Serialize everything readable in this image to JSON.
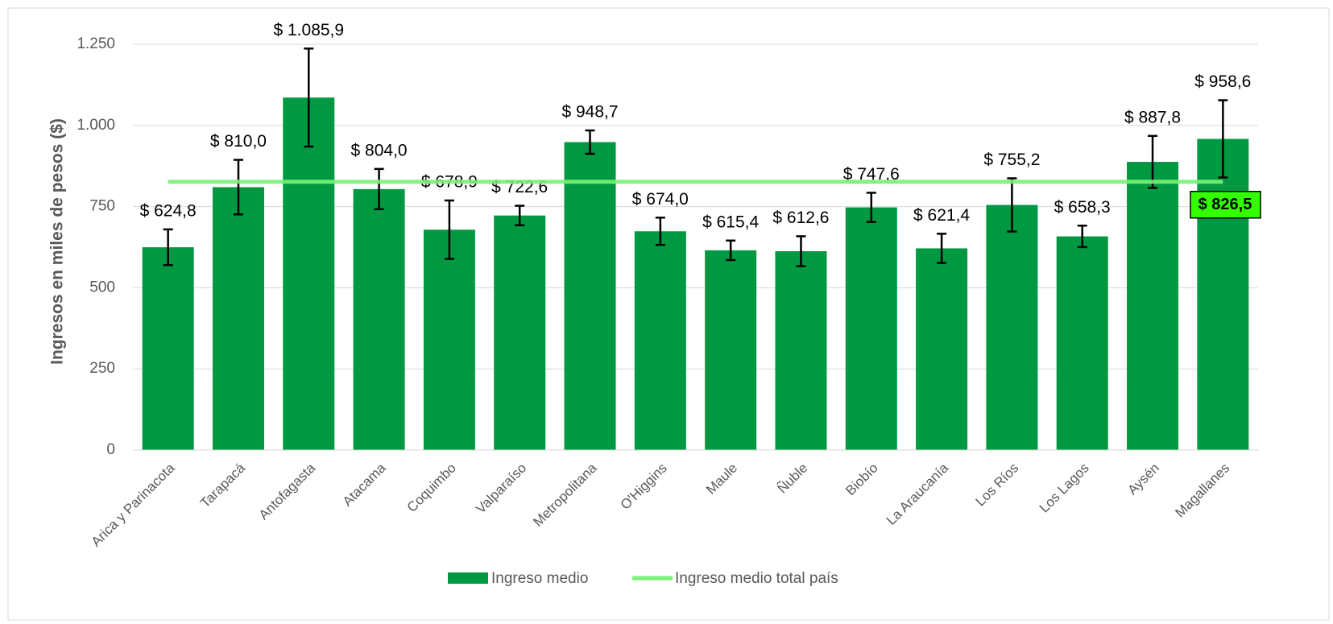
{
  "chart_data": {
    "type": "bar",
    "y_label": "Ingresos en miles de pesos ($)",
    "categories": [
      "Arica y Parinacota",
      "Tarapacá",
      "Antofagasta",
      "Atacama",
      "Coquimbo",
      "Valparaíso",
      "Metropolitana",
      "O'Higgins",
      "Maule",
      "Ñuble",
      "Biobío",
      "La Araucanía",
      "Los Ríos",
      "Los Lagos",
      "Aysén",
      "Magallanes"
    ],
    "series": [
      {
        "name": "Ingreso medio",
        "color": "#009942",
        "values": [
          624.8,
          810.0,
          1085.9,
          804.0,
          678.9,
          722.6,
          948.7,
          674.0,
          615.4,
          612.6,
          747.6,
          621.4,
          755.2,
          658.3,
          887.8,
          958.6
        ],
        "value_labels": [
          "$ 624,8",
          "$ 810,0",
          "$ 1.085,9",
          "$ 804,0",
          "$ 678,9",
          "$ 722,6",
          "$ 948,7",
          "$ 674,0",
          "$ 615,4",
          "$ 612,6",
          "$ 747,6",
          "$ 621,4",
          "$ 755,2",
          "$ 658,3",
          "$ 887,8",
          "$ 958,6"
        ],
        "errors": [
          55,
          84,
          151,
          62,
          90,
          30,
          36,
          42,
          30,
          46,
          45,
          45,
          82,
          33,
          80,
          119
        ]
      }
    ],
    "reference_line": {
      "name": "Ingreso medio total país",
      "value": 826.5,
      "label": "$ 826,5",
      "color": "#77f277",
      "label_color": "#33ff00"
    },
    "ylim": [
      0,
      1250
    ],
    "yticks": [
      0,
      250,
      500,
      750,
      {
        "value": 1000,
        "label": "1.000"
      },
      {
        "value": 1250,
        "label": "1.250"
      }
    ],
    "grid": true
  }
}
